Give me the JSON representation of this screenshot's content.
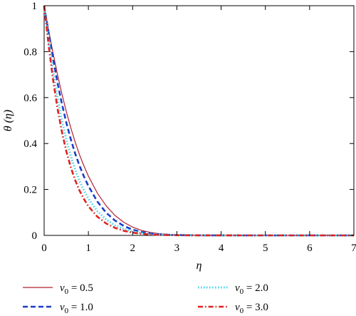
{
  "chart_data": {
    "type": "line",
    "xlabel": "η",
    "ylabel": "θ (η)",
    "xlim": [
      0,
      7
    ],
    "ylim": [
      0,
      1
    ],
    "x_ticks": [
      "0",
      "1",
      "2",
      "3",
      "4",
      "5",
      "6",
      "7"
    ],
    "y_ticks": [
      "0",
      "0.2",
      "0.4",
      "0.6",
      "0.8",
      "1"
    ],
    "grid": false,
    "legend_position": "bottom",
    "x": [
      0,
      0.1,
      0.2,
      0.3,
      0.4,
      0.5,
      0.6,
      0.7,
      0.8,
      0.9,
      1.0,
      1.2,
      1.4,
      1.6,
      1.8,
      2.0,
      2.2,
      2.4,
      2.6,
      2.8,
      3.0,
      3.5,
      4.0,
      4.5,
      5.0,
      5.5,
      6.0,
      6.5,
      7.0
    ],
    "series": [
      {
        "name": "ν0 = 0.5",
        "label_main": "ν",
        "label_sub": "0",
        "label_value": " = 0.5",
        "color": "#b22230",
        "style": "solid",
        "values": [
          1.0,
          0.895,
          0.795,
          0.702,
          0.617,
          0.54,
          0.47,
          0.407,
          0.351,
          0.302,
          0.258,
          0.185,
          0.129,
          0.087,
          0.057,
          0.036,
          0.022,
          0.013,
          0.0075,
          0.0042,
          0.0023,
          0.0006,
          0.00015,
          4e-05,
          1e-05,
          0,
          0,
          0,
          0
        ]
      },
      {
        "name": "ν0 = 1.0",
        "label_main": "ν",
        "label_sub": "0",
        "label_value": " = 1.0",
        "color": "#1a3ec8",
        "style": "dashed",
        "values": [
          1.0,
          0.885,
          0.772,
          0.667,
          0.574,
          0.492,
          0.42,
          0.357,
          0.303,
          0.256,
          0.215,
          0.148,
          0.099,
          0.065,
          0.041,
          0.025,
          0.015,
          0.0088,
          0.005,
          0.0028,
          0.0015,
          0.0004,
          0.0001,
          2e-05,
          0,
          0,
          0,
          0,
          0
        ]
      },
      {
        "name": "ν0 = 2.0",
        "label_main": "ν",
        "label_sub": "0",
        "label_value": " = 2.0",
        "color": "#4fd6e8",
        "style": "dotted",
        "values": [
          1.0,
          0.855,
          0.72,
          0.602,
          0.502,
          0.418,
          0.347,
          0.287,
          0.237,
          0.195,
          0.16,
          0.106,
          0.069,
          0.044,
          0.028,
          0.017,
          0.01,
          0.006,
          0.0035,
          0.002,
          0.0011,
          0.0003,
          7e-05,
          1e-05,
          0,
          0,
          0,
          0,
          0
        ]
      },
      {
        "name": "ν0 = 3.0",
        "label_main": "ν",
        "label_sub": "0",
        "label_value": " = 3.0",
        "color": "#e0211f",
        "style": "dashdot",
        "values": [
          1.0,
          0.83,
          0.68,
          0.555,
          0.452,
          0.367,
          0.298,
          0.241,
          0.195,
          0.158,
          0.127,
          0.082,
          0.052,
          0.033,
          0.02,
          0.012,
          0.0072,
          0.0042,
          0.0024,
          0.0014,
          0.0008,
          0.0002,
          5e-05,
          1e-05,
          0,
          0,
          0,
          0,
          0
        ]
      }
    ]
  }
}
